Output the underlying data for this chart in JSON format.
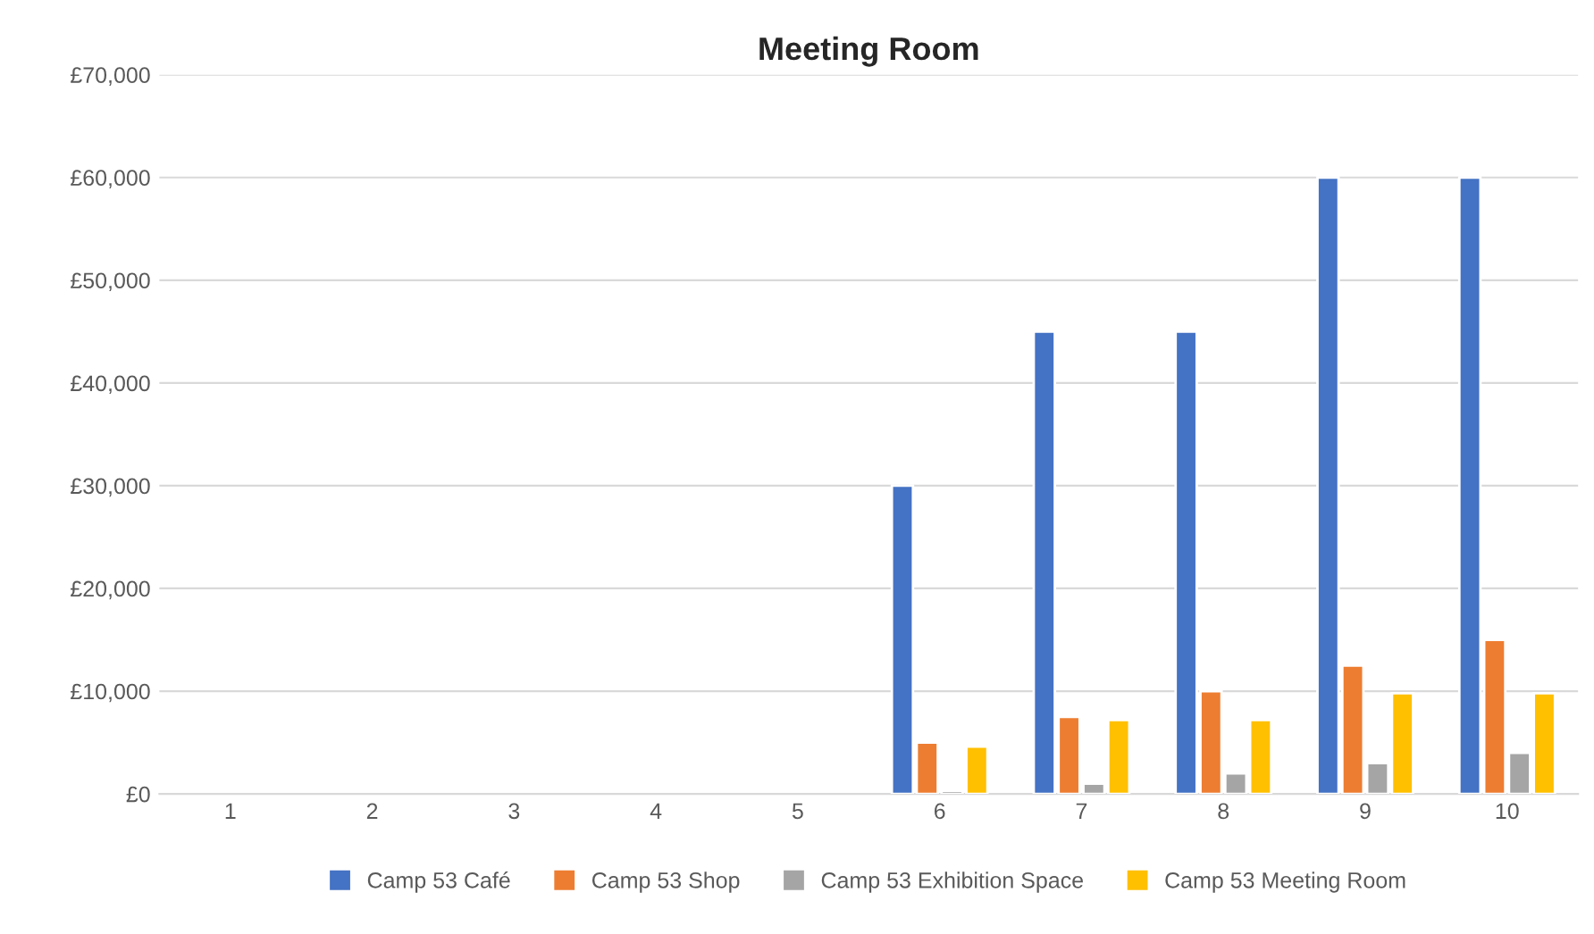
{
  "chart_data": {
    "type": "bar",
    "title": "Meeting Room",
    "categories": [
      "1",
      "2",
      "3",
      "4",
      "5",
      "6",
      "7",
      "8",
      "9",
      "10"
    ],
    "series": [
      {
        "name": "Camp 53 Café",
        "color": "#4472c4",
        "values": [
          null,
          null,
          null,
          null,
          null,
          30000,
          45000,
          45000,
          60000,
          60000
        ]
      },
      {
        "name": "Camp 53 Shop",
        "color": "#ed7d31",
        "values": [
          null,
          null,
          null,
          null,
          null,
          5000,
          7500,
          10000,
          12500,
          15000
        ]
      },
      {
        "name": "Camp 53 Exhibition Space",
        "color": "#a5a5a5",
        "values": [
          null,
          null,
          null,
          null,
          null,
          300,
          1000,
          2000,
          3000,
          4000
        ]
      },
      {
        "name": "Camp 53 Meeting Room",
        "color": "#ffc000",
        "values": [
          null,
          null,
          null,
          null,
          null,
          4600,
          7200,
          7200,
          9800,
          9800
        ]
      }
    ],
    "ylim": [
      0,
      70000
    ],
    "yticks": [
      {
        "value": 0,
        "label": "£0"
      },
      {
        "value": 10000,
        "label": "£10,000"
      },
      {
        "value": 20000,
        "label": "£20,000"
      },
      {
        "value": 30000,
        "label": "£30,000"
      },
      {
        "value": 40000,
        "label": "£40,000"
      },
      {
        "value": 50000,
        "label": "£50,000"
      },
      {
        "value": 60000,
        "label": "£60,000"
      },
      {
        "value": 70000,
        "label": "£70,000"
      }
    ],
    "grid": "y",
    "legend": "bottom"
  }
}
